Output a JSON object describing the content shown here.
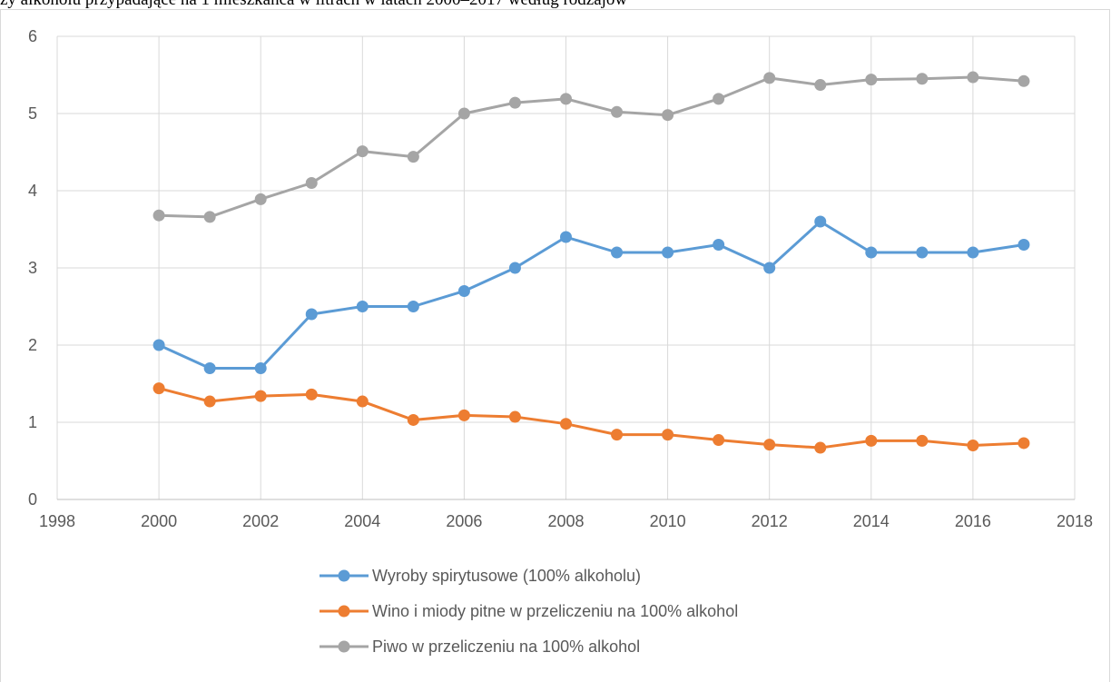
{
  "page": {
    "caption": "ży alkoholu przypadające na 1 mieszkańca w litrach w latach 2000–2017 według rodzajów"
  },
  "chart_data": {
    "type": "line",
    "title": "",
    "xlabel": "",
    "ylabel": "",
    "xlim": [
      1998,
      2018
    ],
    "ylim": [
      0,
      6
    ],
    "x_ticks": [
      "1998",
      "2000",
      "2002",
      "2004",
      "2006",
      "2008",
      "2010",
      "2012",
      "2014",
      "2016",
      "2018"
    ],
    "y_ticks": [
      "0",
      "1",
      "2",
      "3",
      "4",
      "5",
      "6"
    ],
    "grid": "vertical-and-horizontal",
    "legend_position": "bottom-left",
    "x": [
      2000,
      2001,
      2002,
      2003,
      2004,
      2005,
      2006,
      2007,
      2008,
      2009,
      2010,
      2011,
      2012,
      2013,
      2014,
      2015,
      2016,
      2017
    ],
    "series": [
      {
        "name": "Wyroby spirytusowe (100% alkoholu)",
        "color": "#5b9bd5",
        "values": [
          2.0,
          1.7,
          1.7,
          2.4,
          2.5,
          2.5,
          2.7,
          3.0,
          3.4,
          3.2,
          3.2,
          3.3,
          3.0,
          3.6,
          3.2,
          3.2,
          3.2,
          3.3
        ]
      },
      {
        "name": "Wino i miody pitne w przeliczeniu na 100% alkohol",
        "color": "#ed7d31",
        "values": [
          1.44,
          1.27,
          1.34,
          1.36,
          1.27,
          1.03,
          1.09,
          1.07,
          0.98,
          0.84,
          0.84,
          0.77,
          0.71,
          0.67,
          0.76,
          0.76,
          0.7,
          0.73
        ]
      },
      {
        "name": "Piwo w przeliczeniu na 100% alkohol",
        "color": "#a5a5a5",
        "values": [
          3.68,
          3.66,
          3.89,
          4.1,
          4.51,
          4.44,
          5.0,
          5.14,
          5.19,
          5.02,
          4.98,
          5.19,
          5.46,
          5.37,
          5.44,
          5.45,
          5.47,
          5.42
        ]
      }
    ]
  }
}
